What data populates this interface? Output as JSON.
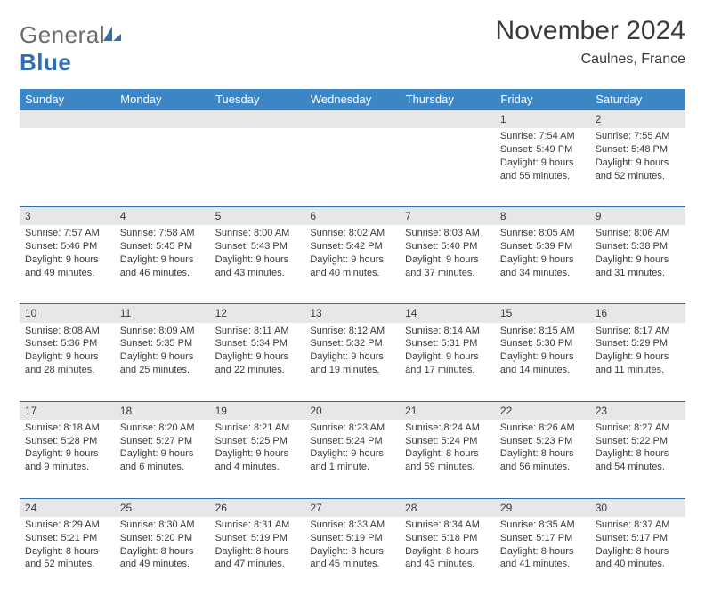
{
  "brand": {
    "word1": "General",
    "word2": "Blue"
  },
  "title": "November 2024",
  "location": "Caulnes, France",
  "colors": {
    "header_bg": "#3d86c6",
    "rule": "#2f6fb0",
    "daynum_bg": "#e7e7e7",
    "text": "#3a3a3a",
    "logo_gray": "#6b6b6b",
    "logo_blue": "#2f6fb0"
  },
  "day_headers": [
    "Sunday",
    "Monday",
    "Tuesday",
    "Wednesday",
    "Thursday",
    "Friday",
    "Saturday"
  ],
  "weeks": [
    [
      null,
      null,
      null,
      null,
      null,
      {
        "n": "1",
        "sunrise": "Sunrise: 7:54 AM",
        "sunset": "Sunset: 5:49 PM",
        "daylight": "Daylight: 9 hours and 55 minutes."
      },
      {
        "n": "2",
        "sunrise": "Sunrise: 7:55 AM",
        "sunset": "Sunset: 5:48 PM",
        "daylight": "Daylight: 9 hours and 52 minutes."
      }
    ],
    [
      {
        "n": "3",
        "sunrise": "Sunrise: 7:57 AM",
        "sunset": "Sunset: 5:46 PM",
        "daylight": "Daylight: 9 hours and 49 minutes."
      },
      {
        "n": "4",
        "sunrise": "Sunrise: 7:58 AM",
        "sunset": "Sunset: 5:45 PM",
        "daylight": "Daylight: 9 hours and 46 minutes."
      },
      {
        "n": "5",
        "sunrise": "Sunrise: 8:00 AM",
        "sunset": "Sunset: 5:43 PM",
        "daylight": "Daylight: 9 hours and 43 minutes."
      },
      {
        "n": "6",
        "sunrise": "Sunrise: 8:02 AM",
        "sunset": "Sunset: 5:42 PM",
        "daylight": "Daylight: 9 hours and 40 minutes."
      },
      {
        "n": "7",
        "sunrise": "Sunrise: 8:03 AM",
        "sunset": "Sunset: 5:40 PM",
        "daylight": "Daylight: 9 hours and 37 minutes."
      },
      {
        "n": "8",
        "sunrise": "Sunrise: 8:05 AM",
        "sunset": "Sunset: 5:39 PM",
        "daylight": "Daylight: 9 hours and 34 minutes."
      },
      {
        "n": "9",
        "sunrise": "Sunrise: 8:06 AM",
        "sunset": "Sunset: 5:38 PM",
        "daylight": "Daylight: 9 hours and 31 minutes."
      }
    ],
    [
      {
        "n": "10",
        "sunrise": "Sunrise: 8:08 AM",
        "sunset": "Sunset: 5:36 PM",
        "daylight": "Daylight: 9 hours and 28 minutes."
      },
      {
        "n": "11",
        "sunrise": "Sunrise: 8:09 AM",
        "sunset": "Sunset: 5:35 PM",
        "daylight": "Daylight: 9 hours and 25 minutes."
      },
      {
        "n": "12",
        "sunrise": "Sunrise: 8:11 AM",
        "sunset": "Sunset: 5:34 PM",
        "daylight": "Daylight: 9 hours and 22 minutes."
      },
      {
        "n": "13",
        "sunrise": "Sunrise: 8:12 AM",
        "sunset": "Sunset: 5:32 PM",
        "daylight": "Daylight: 9 hours and 19 minutes."
      },
      {
        "n": "14",
        "sunrise": "Sunrise: 8:14 AM",
        "sunset": "Sunset: 5:31 PM",
        "daylight": "Daylight: 9 hours and 17 minutes."
      },
      {
        "n": "15",
        "sunrise": "Sunrise: 8:15 AM",
        "sunset": "Sunset: 5:30 PM",
        "daylight": "Daylight: 9 hours and 14 minutes."
      },
      {
        "n": "16",
        "sunrise": "Sunrise: 8:17 AM",
        "sunset": "Sunset: 5:29 PM",
        "daylight": "Daylight: 9 hours and 11 minutes."
      }
    ],
    [
      {
        "n": "17",
        "sunrise": "Sunrise: 8:18 AM",
        "sunset": "Sunset: 5:28 PM",
        "daylight": "Daylight: 9 hours and 9 minutes."
      },
      {
        "n": "18",
        "sunrise": "Sunrise: 8:20 AM",
        "sunset": "Sunset: 5:27 PM",
        "daylight": "Daylight: 9 hours and 6 minutes."
      },
      {
        "n": "19",
        "sunrise": "Sunrise: 8:21 AM",
        "sunset": "Sunset: 5:25 PM",
        "daylight": "Daylight: 9 hours and 4 minutes."
      },
      {
        "n": "20",
        "sunrise": "Sunrise: 8:23 AM",
        "sunset": "Sunset: 5:24 PM",
        "daylight": "Daylight: 9 hours and 1 minute."
      },
      {
        "n": "21",
        "sunrise": "Sunrise: 8:24 AM",
        "sunset": "Sunset: 5:24 PM",
        "daylight": "Daylight: 8 hours and 59 minutes."
      },
      {
        "n": "22",
        "sunrise": "Sunrise: 8:26 AM",
        "sunset": "Sunset: 5:23 PM",
        "daylight": "Daylight: 8 hours and 56 minutes."
      },
      {
        "n": "23",
        "sunrise": "Sunrise: 8:27 AM",
        "sunset": "Sunset: 5:22 PM",
        "daylight": "Daylight: 8 hours and 54 minutes."
      }
    ],
    [
      {
        "n": "24",
        "sunrise": "Sunrise: 8:29 AM",
        "sunset": "Sunset: 5:21 PM",
        "daylight": "Daylight: 8 hours and 52 minutes."
      },
      {
        "n": "25",
        "sunrise": "Sunrise: 8:30 AM",
        "sunset": "Sunset: 5:20 PM",
        "daylight": "Daylight: 8 hours and 49 minutes."
      },
      {
        "n": "26",
        "sunrise": "Sunrise: 8:31 AM",
        "sunset": "Sunset: 5:19 PM",
        "daylight": "Daylight: 8 hours and 47 minutes."
      },
      {
        "n": "27",
        "sunrise": "Sunrise: 8:33 AM",
        "sunset": "Sunset: 5:19 PM",
        "daylight": "Daylight: 8 hours and 45 minutes."
      },
      {
        "n": "28",
        "sunrise": "Sunrise: 8:34 AM",
        "sunset": "Sunset: 5:18 PM",
        "daylight": "Daylight: 8 hours and 43 minutes."
      },
      {
        "n": "29",
        "sunrise": "Sunrise: 8:35 AM",
        "sunset": "Sunset: 5:17 PM",
        "daylight": "Daylight: 8 hours and 41 minutes."
      },
      {
        "n": "30",
        "sunrise": "Sunrise: 8:37 AM",
        "sunset": "Sunset: 5:17 PM",
        "daylight": "Daylight: 8 hours and 40 minutes."
      }
    ]
  ]
}
